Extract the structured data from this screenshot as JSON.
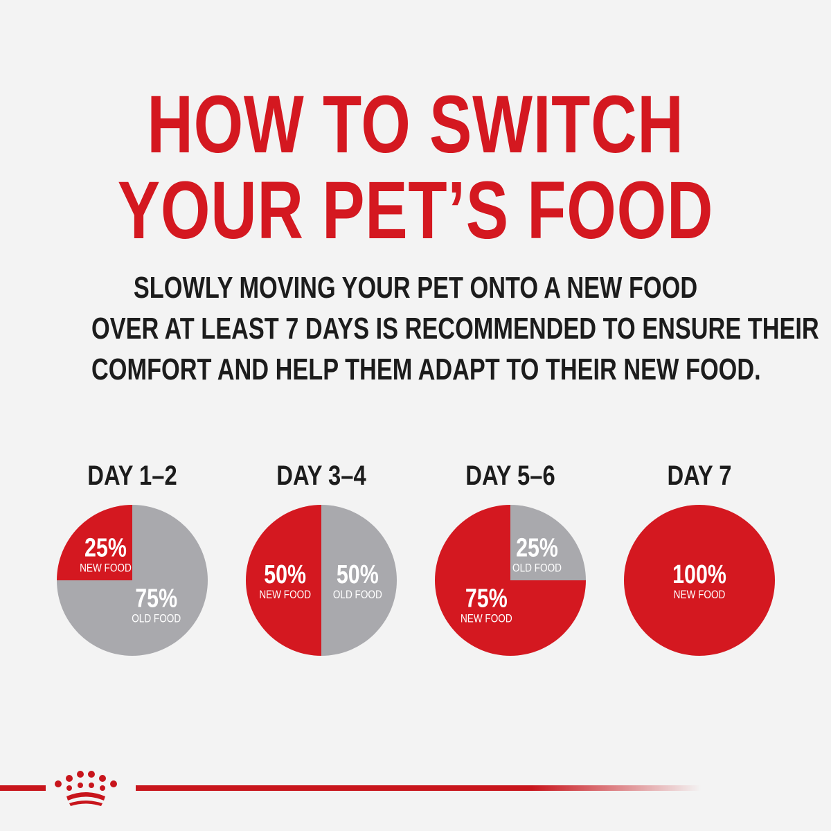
{
  "title": {
    "line1": "HOW TO SWITCH",
    "line2": "YOUR PET’S FOOD"
  },
  "subtitle": {
    "line1": "SLOWLY MOVING YOUR PET ONTO A NEW FOOD",
    "line2": "OVER AT LEAST 7 DAYS IS RECOMMENDED TO ENSURE THEIR",
    "line3": "COMFORT AND HELP THEM ADAPT TO THEIR NEW FOOD."
  },
  "colors": {
    "new_food": "#d41820",
    "old_food": "#a9a9ad",
    "title": "#d41820",
    "text": "#1c1c1c",
    "background": "#f3f3f3"
  },
  "footer": {
    "logo_icon": "crown-icon"
  },
  "chart_data": [
    {
      "type": "pie",
      "title": "DAY 1–2",
      "slices": [
        {
          "label": "NEW FOOD",
          "value": 25,
          "display": "25%",
          "color": "#d41820"
        },
        {
          "label": "OLD FOOD",
          "value": 75,
          "display": "75%",
          "color": "#a9a9ad"
        }
      ]
    },
    {
      "type": "pie",
      "title": "DAY 3–4",
      "slices": [
        {
          "label": "NEW FOOD",
          "value": 50,
          "display": "50%",
          "color": "#d41820"
        },
        {
          "label": "OLD FOOD",
          "value": 50,
          "display": "50%",
          "color": "#a9a9ad"
        }
      ]
    },
    {
      "type": "pie",
      "title": "DAY 5–6",
      "slices": [
        {
          "label": "NEW FOOD",
          "value": 75,
          "display": "75%",
          "color": "#d41820"
        },
        {
          "label": "OLD FOOD",
          "value": 25,
          "display": "25%",
          "color": "#a9a9ad"
        }
      ]
    },
    {
      "type": "pie",
      "title": "DAY 7",
      "slices": [
        {
          "label": "NEW FOOD",
          "value": 100,
          "display": "100%",
          "color": "#d41820"
        }
      ]
    }
  ]
}
